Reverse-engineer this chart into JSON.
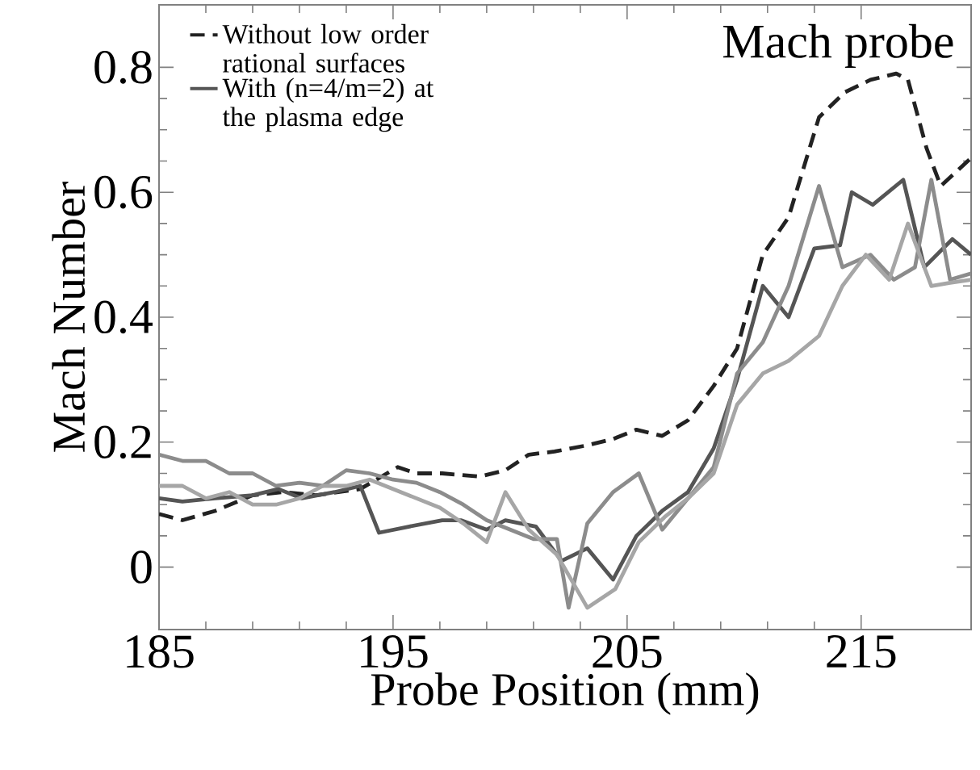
{
  "chart_data": {
    "type": "line",
    "xlabel": "Probe Position (mm)",
    "ylabel": "Mach Number",
    "annotations": [
      "Mach probe"
    ],
    "xlim": [
      185,
      219.7
    ],
    "ylim": [
      -0.1,
      0.9
    ],
    "xticks": [
      185,
      195,
      205,
      215
    ],
    "yticks": [
      0,
      {
        "value": 0.2,
        "label": "0.2"
      },
      {
        "value": 0.4,
        "label": "0.4"
      },
      {
        "value": 0.6,
        "label": "0.6"
      },
      {
        "value": 0.8,
        "label": "0.8"
      }
    ],
    "grid": false,
    "legend": "top left",
    "marker": "none",
    "series": [
      {
        "name": "Without  low order rational surfaces",
        "color": "#222222",
        "line_style": "dashed",
        "x": [
          185,
          186,
          187.4,
          189,
          190.3,
          191.7,
          193.6,
          195.2,
          196,
          197.1,
          198.7,
          199.8,
          200.8,
          201.9,
          203.3,
          204.4,
          205.4,
          206.5,
          207.6,
          208.7,
          209.7,
          210.8,
          211.9,
          213.2,
          214.3,
          215.4,
          216.5,
          217.0,
          217.8,
          218.4,
          219.7
        ],
        "values": [
          0.085,
          0.075,
          0.09,
          0.115,
          0.12,
          0.115,
          0.125,
          0.16,
          0.15,
          0.15,
          0.145,
          0.155,
          0.18,
          0.185,
          0.195,
          0.205,
          0.22,
          0.21,
          0.235,
          0.29,
          0.35,
          0.5,
          0.56,
          0.72,
          0.76,
          0.78,
          0.79,
          0.78,
          0.67,
          0.61,
          0.655
        ]
      },
      {
        "name": "With  (n=4/m=2) at the plasma edge",
        "color": "#555555",
        "line_style": "solid",
        "x": [
          185,
          186,
          187.4,
          189,
          190.1,
          191.1,
          192.5,
          193.6,
          194.4,
          195.7,
          197.1,
          197.9,
          199,
          199.8,
          201.1,
          202.2,
          203.3,
          204.4,
          205.4,
          206.5,
          207.6,
          208.7,
          209.7,
          210.8,
          211.9,
          213,
          214.1,
          214.6,
          215.5,
          216.8,
          217.7,
          218.9,
          219.7
        ],
        "values": [
          0.11,
          0.105,
          0.11,
          0.115,
          0.125,
          0.11,
          0.12,
          0.13,
          0.055,
          0.065,
          0.075,
          0.075,
          0.06,
          0.075,
          0.065,
          0.01,
          0.03,
          -0.02,
          0.05,
          0.09,
          0.12,
          0.19,
          0.3,
          0.45,
          0.4,
          0.51,
          0.515,
          0.6,
          0.58,
          0.62,
          0.48,
          0.525,
          0.5
        ]
      },
      {
        "color": "#8c8c8c",
        "line_style": "solid",
        "x": [
          185,
          186,
          187,
          188,
          189,
          190,
          191,
          192,
          193,
          194,
          195,
          196,
          197,
          198,
          199,
          200,
          201,
          202,
          202.5,
          203.3,
          204.4,
          205.5,
          206.5,
          207.6,
          208.7,
          209.7,
          210.8,
          211.9,
          213.2,
          214.2,
          215.4,
          216.4,
          217.3,
          218,
          218.8,
          219.7
        ],
        "values": [
          0.18,
          0.17,
          0.17,
          0.15,
          0.15,
          0.13,
          0.135,
          0.13,
          0.155,
          0.15,
          0.14,
          0.135,
          0.12,
          0.1,
          0.075,
          0.06,
          0.045,
          0.045,
          -0.065,
          0.07,
          0.12,
          0.15,
          0.06,
          0.11,
          0.16,
          0.31,
          0.36,
          0.45,
          0.61,
          0.48,
          0.5,
          0.46,
          0.48,
          0.62,
          0.46,
          0.47
        ]
      },
      {
        "color": "#a6a6a6",
        "line_style": "solid",
        "x": [
          185,
          186,
          187,
          188,
          189,
          190,
          191,
          192,
          193,
          194,
          195,
          196,
          197,
          198,
          199,
          199.8,
          200.8,
          202,
          203.3,
          204.5,
          205.5,
          206.6,
          207.6,
          208.7,
          209.7,
          210.8,
          211.9,
          213.2,
          214.2,
          215.2,
          216.2,
          217,
          218,
          218.8,
          219.7
        ],
        "values": [
          0.13,
          0.13,
          0.11,
          0.12,
          0.1,
          0.1,
          0.11,
          0.13,
          0.13,
          0.14,
          0.125,
          0.11,
          0.095,
          0.07,
          0.04,
          0.12,
          0.06,
          0.02,
          -0.065,
          -0.035,
          0.04,
          0.08,
          0.11,
          0.15,
          0.26,
          0.31,
          0.33,
          0.37,
          0.45,
          0.5,
          0.46,
          0.55,
          0.45,
          0.455,
          0.46
        ]
      }
    ]
  }
}
